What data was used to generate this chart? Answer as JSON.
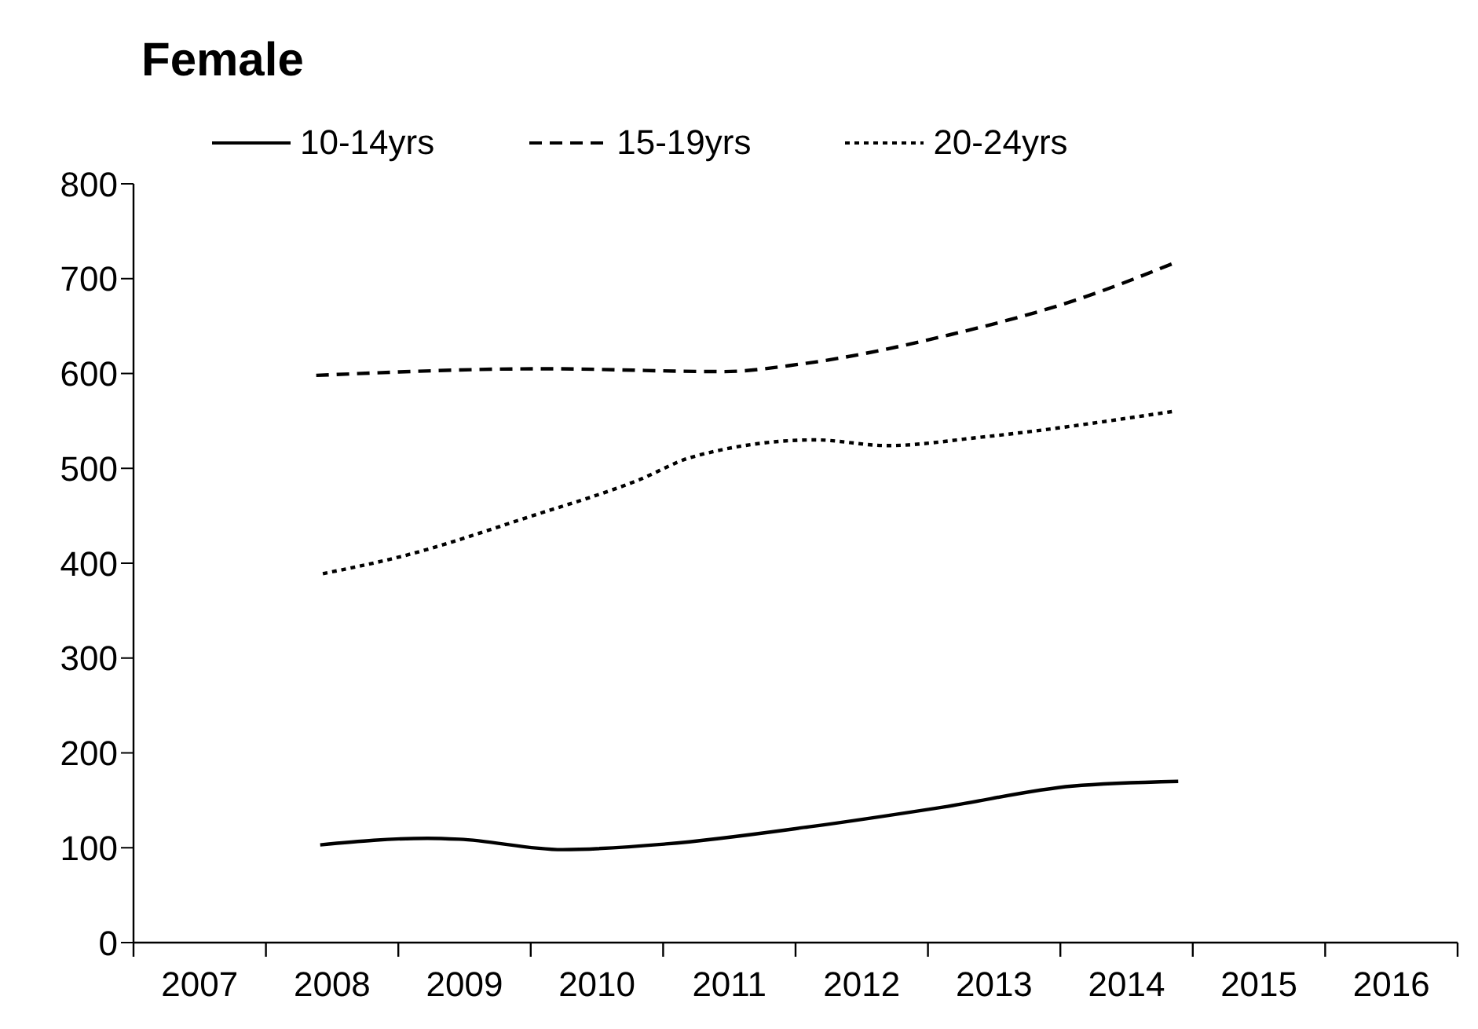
{
  "chart_data": {
    "type": "line",
    "title": "Female",
    "xlim": [
      2006.5,
      2016.5
    ],
    "xticks": [
      {
        "value": 2006.5,
        "label": null
      },
      {
        "value": 2007,
        "label": "2007"
      },
      {
        "value": 2007.5,
        "label": null
      },
      {
        "value": 2008,
        "label": "2008"
      },
      {
        "value": 2008.5,
        "label": null
      },
      {
        "value": 2009,
        "label": "2009"
      },
      {
        "value": 2009.5,
        "label": null
      },
      {
        "value": 2010,
        "label": "2010"
      },
      {
        "value": 2010.5,
        "label": null
      },
      {
        "value": 2011,
        "label": "2011"
      },
      {
        "value": 2011.5,
        "label": null
      },
      {
        "value": 2012,
        "label": "2012"
      },
      {
        "value": 2012.5,
        "label": null
      },
      {
        "value": 2013,
        "label": "2013"
      },
      {
        "value": 2013.5,
        "label": null
      },
      {
        "value": 2014,
        "label": "2014"
      },
      {
        "value": 2014.5,
        "label": null
      },
      {
        "value": 2015,
        "label": "2015"
      },
      {
        "value": 2015.5,
        "label": null
      },
      {
        "value": 2016,
        "label": "2016"
      },
      {
        "value": 2016.5,
        "label": null
      }
    ],
    "ylim": [
      0,
      800
    ],
    "yticks": [
      0,
      100,
      200,
      300,
      400,
      500,
      600,
      700,
      800
    ],
    "grid": false,
    "legend": "top",
    "marker": "none",
    "series": [
      {
        "name": "10-14yrs",
        "color": "#000000",
        "line_style": "solid",
        "x": [
          2007.91,
          2008.72,
          2008.96,
          2009.74,
          2010.52,
          2011.6,
          2012.62,
          2013.59,
          2014.39
        ],
        "values": [
          103,
          110,
          109,
          98,
          104,
          122,
          143,
          165,
          170
        ]
      },
      {
        "name": "15-19yrs",
        "color": "#000000",
        "line_style": "dashed",
        "x": [
          2007.88,
          2009.6,
          2010.95,
          2011.54,
          2012.67,
          2013.65,
          2014.35
        ],
        "values": [
          598,
          605,
          602,
          610,
          641,
          679,
          716
        ]
      },
      {
        "name": "20-24yrs",
        "color": "#000000",
        "line_style": "dotted",
        "x": [
          2007.93,
          2008.52,
          2009.49,
          2010.32,
          2010.72,
          2011.65,
          2012.19,
          2012.91,
          2014.35
        ],
        "values": [
          389,
          407,
          449,
          488,
          512,
          530,
          524,
          533,
          560
        ]
      }
    ]
  }
}
